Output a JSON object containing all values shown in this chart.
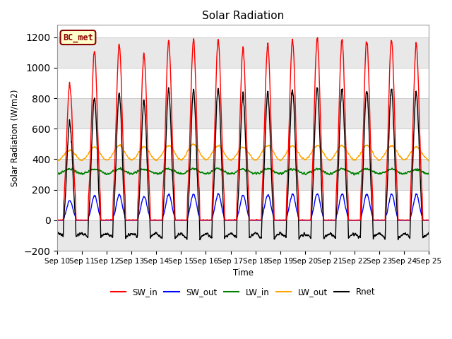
{
  "title": "Solar Radiation",
  "ylabel": "Solar Radiation (W/m2)",
  "xlabel": "Time",
  "ylim": [
    -200,
    1280
  ],
  "yticks": [
    -200,
    0,
    200,
    400,
    600,
    800,
    1000,
    1200
  ],
  "xtick_labels": [
    "Sep 10",
    "Sep 11",
    "Sep 12",
    "Sep 13",
    "Sep 14",
    "Sep 15",
    "Sep 16",
    "Sep 17",
    "Sep 18",
    "Sep 19",
    "Sep 20",
    "Sep 21",
    "Sep 22",
    "Sep 23",
    "Sep 24",
    "Sep 25"
  ],
  "label_box": "BC_met",
  "legend_entries": [
    "SW_in",
    "SW_out",
    "LW_in",
    "LW_out",
    "Rnet"
  ],
  "legend_colors": [
    "red",
    "blue",
    "green",
    "orange",
    "black"
  ],
  "bg_color": "#ffffff",
  "axes_bg": "#ffffff",
  "n_days": 15,
  "pts_per_day": 144,
  "day_peaks_swin": [
    900,
    1100,
    1150,
    1080,
    1170,
    1180,
    1190,
    1130,
    1150,
    1185,
    1190,
    1185,
    1175,
    1180,
    1160
  ],
  "lw_in_base": 320,
  "lw_out_base": 385,
  "lw_out_day_peaks": [
    460,
    480,
    490,
    480,
    490,
    500,
    490,
    480,
    490,
    490,
    490,
    490,
    490,
    490,
    480
  ],
  "rnet_night": -80,
  "figsize": [
    6.4,
    4.8
  ],
  "dpi": 100
}
